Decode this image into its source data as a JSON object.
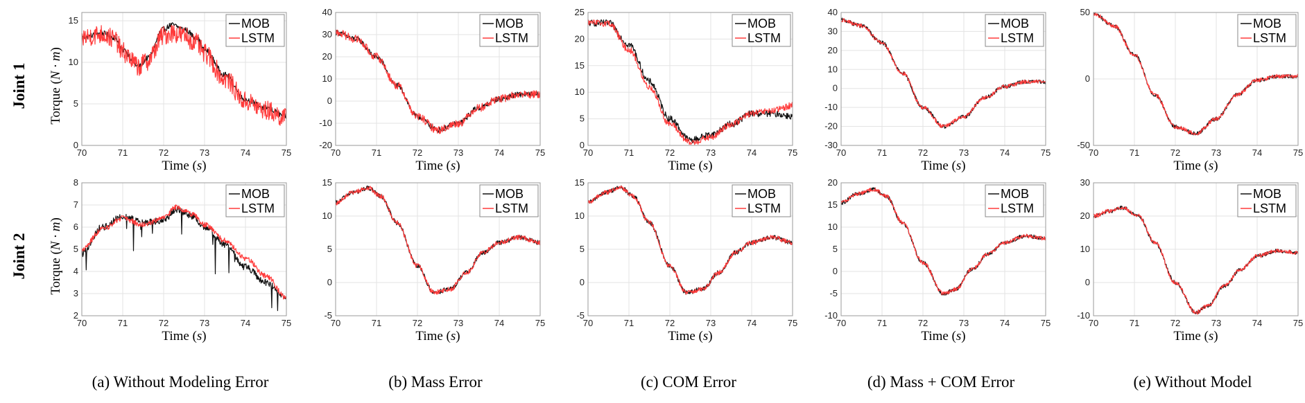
{
  "figure": {
    "row_labels": [
      "Joint 1",
      "Joint 2"
    ],
    "captions": [
      "(a) Without Modeling Error",
      "(b) Mass Error",
      "(c) COM Error",
      "(d) Mass + COM Error",
      "(e) Without Model"
    ],
    "xlabel_prefix": "Time (",
    "xlabel_var": "s",
    "xlabel_suffix": ")",
    "ylabel_prefix": "Torque (",
    "ylabel_var": "N · m",
    "ylabel_suffix": ")",
    "colors": {
      "MOB": "#111111",
      "LSTM": "#ff3b3b",
      "grid": "#e3e3e3",
      "frame": "#9a9a9a"
    }
  },
  "chart_data": [
    {
      "type": "line",
      "row": 0,
      "col": 0,
      "xlim": [
        70,
        75
      ],
      "ylim": [
        0,
        16
      ],
      "yticks": [
        0,
        5,
        10,
        15
      ],
      "xticks": [
        70,
        71,
        72,
        73,
        74,
        75
      ],
      "x": [
        70,
        70.5,
        70.8,
        71,
        71.4,
        71.6,
        72,
        72.2,
        72.5,
        72.8,
        73,
        73.5,
        74,
        74.5,
        75
      ],
      "series": [
        {
          "name": "MOB",
          "values": [
            13,
            13.5,
            13,
            11.5,
            9.5,
            10.5,
            14,
            14.5,
            14,
            13,
            11.5,
            8.5,
            5.5,
            4.5,
            3.5
          ]
        },
        {
          "name": "LSTM",
          "values": [
            13,
            13.4,
            12.8,
            11.2,
            9.5,
            10.2,
            13.2,
            13.6,
            13.2,
            12.3,
            11,
            8,
            5.3,
            4.2,
            3.3
          ]
        }
      ],
      "noise": [
        0.4,
        1.5
      ]
    },
    {
      "type": "line",
      "row": 0,
      "col": 1,
      "xlim": [
        70,
        75
      ],
      "ylim": [
        -20,
        40
      ],
      "yticks": [
        -20,
        -10,
        0,
        10,
        20,
        30,
        40
      ],
      "xticks": [
        70,
        71,
        72,
        73,
        74,
        75
      ],
      "x": [
        70,
        70.5,
        71,
        71.5,
        72,
        72.5,
        73,
        73.5,
        74,
        74.5,
        75
      ],
      "series": [
        {
          "name": "MOB",
          "values": [
            31,
            28,
            20,
            7,
            -7,
            -13,
            -10,
            -3,
            1,
            3,
            3
          ]
        },
        {
          "name": "LSTM",
          "values": [
            31,
            28,
            20,
            7,
            -7,
            -13,
            -10,
            -3,
            1,
            3,
            3
          ]
        }
      ],
      "noise": [
        0.4,
        0.6
      ]
    },
    {
      "type": "line",
      "row": 0,
      "col": 2,
      "xlim": [
        70,
        75
      ],
      "ylim": [
        0,
        25
      ],
      "yticks": [
        0,
        5,
        10,
        15,
        20,
        25
      ],
      "xticks": [
        70,
        71,
        72,
        73,
        74,
        75
      ],
      "x": [
        70,
        70.5,
        71,
        71.5,
        72,
        72.5,
        73,
        73.5,
        74,
        74.5,
        75
      ],
      "series": [
        {
          "name": "MOB",
          "values": [
            23,
            23,
            19,
            12,
            5,
            1,
            2,
            4,
            6,
            6,
            5.5
          ]
        },
        {
          "name": "LSTM",
          "values": [
            23,
            23,
            18,
            11,
            4,
            0.5,
            1.5,
            4,
            6,
            6.5,
            7.5
          ]
        }
      ],
      "noise": [
        0.5,
        0.5
      ]
    },
    {
      "type": "line",
      "row": 0,
      "col": 3,
      "xlim": [
        70,
        75
      ],
      "ylim": [
        -30,
        40
      ],
      "yticks": [
        -30,
        -20,
        -10,
        0,
        10,
        20,
        30,
        40
      ],
      "xticks": [
        70,
        71,
        72,
        73,
        74,
        75
      ],
      "x": [
        70,
        70.5,
        71,
        71.5,
        72,
        72.5,
        73,
        73.5,
        74,
        74.5,
        75
      ],
      "series": [
        {
          "name": "MOB",
          "values": [
            36,
            33,
            24,
            8,
            -10,
            -20,
            -15,
            -5,
            1,
            3.5,
            3.5
          ]
        },
        {
          "name": "LSTM",
          "values": [
            36,
            33,
            24,
            8,
            -10,
            -20,
            -15,
            -5,
            1,
            3.5,
            3.5
          ]
        }
      ],
      "noise": [
        0.3,
        0.3
      ]
    },
    {
      "type": "line",
      "row": 0,
      "col": 4,
      "xlim": [
        70,
        75
      ],
      "ylim": [
        -50,
        50
      ],
      "yticks": [
        -50,
        0,
        50
      ],
      "xticks": [
        70,
        71,
        72,
        73,
        74,
        75
      ],
      "x": [
        70,
        70.5,
        71,
        71.5,
        72,
        72.5,
        73,
        73.5,
        74,
        74.5,
        75
      ],
      "series": [
        {
          "name": "MOB",
          "values": [
            49,
            40,
            18,
            -12,
            -36,
            -41,
            -30,
            -12,
            -1,
            2,
            2
          ]
        },
        {
          "name": "LSTM",
          "values": [
            49,
            40,
            18,
            -12,
            -36,
            -41,
            -30,
            -12,
            -1,
            2,
            2
          ]
        }
      ],
      "noise": [
        0.3,
        0.3
      ]
    },
    {
      "type": "line",
      "row": 1,
      "col": 0,
      "xlim": [
        70,
        75
      ],
      "ylim": [
        2,
        8
      ],
      "yticks": [
        2,
        3,
        4,
        5,
        6,
        7,
        8
      ],
      "xticks": [
        70,
        71,
        72,
        73,
        74,
        75
      ],
      "x": [
        70,
        70.5,
        71,
        71.5,
        72,
        72.3,
        72.7,
        73,
        73.5,
        74,
        74.5,
        75
      ],
      "series": [
        {
          "name": "MOB",
          "values": [
            4.8,
            6,
            6.5,
            6.2,
            6.3,
            6.8,
            6.5,
            6,
            5.2,
            4.2,
            3.5,
            2.8
          ]
        },
        {
          "name": "LSTM",
          "values": [
            5,
            5.9,
            6.4,
            6.1,
            6.4,
            6.9,
            6.6,
            6.1,
            5.4,
            4.6,
            3.8,
            2.8
          ]
        }
      ],
      "noise": [
        0.5,
        0.4
      ]
    },
    {
      "type": "line",
      "row": 1,
      "col": 1,
      "xlim": [
        70,
        75
      ],
      "ylim": [
        -5,
        15
      ],
      "yticks": [
        -5,
        0,
        5,
        10,
        15
      ],
      "xticks": [
        70,
        71,
        72,
        73,
        74,
        75
      ],
      "x": [
        70,
        70.4,
        70.8,
        71.1,
        71.5,
        72,
        72.4,
        72.8,
        73.2,
        73.6,
        74,
        74.5,
        75
      ],
      "series": [
        {
          "name": "MOB",
          "values": [
            12,
            13.5,
            14.2,
            13,
            9,
            2.5,
            -1.5,
            -1,
            1.5,
            4.5,
            6,
            6.8,
            6
          ]
        },
        {
          "name": "LSTM",
          "values": [
            12,
            13.5,
            14.2,
            13,
            9,
            2.5,
            -1.5,
            -1,
            1.5,
            4.5,
            6,
            6.8,
            6
          ]
        }
      ],
      "noise": [
        0.35,
        0.35
      ]
    },
    {
      "type": "line",
      "row": 1,
      "col": 2,
      "xlim": [
        70,
        75
      ],
      "ylim": [
        -5,
        15
      ],
      "yticks": [
        -5,
        0,
        5,
        10,
        15
      ],
      "xticks": [
        70,
        71,
        72,
        73,
        74,
        75
      ],
      "x": [
        70,
        70.4,
        70.8,
        71.1,
        71.5,
        72,
        72.4,
        72.8,
        73.2,
        73.6,
        74,
        74.5,
        75
      ],
      "series": [
        {
          "name": "MOB",
          "values": [
            12,
            13.5,
            14.3,
            13,
            9,
            2.5,
            -1.5,
            -1,
            1.5,
            4.5,
            6,
            6.8,
            6
          ]
        },
        {
          "name": "LSTM",
          "values": [
            12,
            13.5,
            14.3,
            13,
            9,
            2.5,
            -1.5,
            -1,
            1.5,
            4.5,
            6,
            6.8,
            6
          ]
        }
      ],
      "noise": [
        0.35,
        0.35
      ]
    },
    {
      "type": "line",
      "row": 1,
      "col": 3,
      "xlim": [
        70,
        75
      ],
      "ylim": [
        -10,
        20
      ],
      "yticks": [
        -10,
        -5,
        0,
        5,
        10,
        15,
        20
      ],
      "xticks": [
        70,
        71,
        72,
        73,
        74,
        75
      ],
      "x": [
        70,
        70.4,
        70.8,
        71.1,
        71.5,
        72,
        72.5,
        72.8,
        73.2,
        73.6,
        74,
        74.5,
        75
      ],
      "series": [
        {
          "name": "MOB",
          "values": [
            15.5,
            17.5,
            18.5,
            17,
            11,
            2,
            -5,
            -4,
            0.5,
            4,
            6.5,
            8,
            7.5
          ]
        },
        {
          "name": "LSTM",
          "values": [
            15.5,
            17.5,
            18.5,
            17,
            11,
            2,
            -5,
            -4,
            0.5,
            4,
            6.5,
            8,
            7.5
          ]
        }
      ],
      "noise": [
        0.3,
        0.3
      ]
    },
    {
      "type": "line",
      "row": 1,
      "col": 4,
      "xlim": [
        70,
        75
      ],
      "ylim": [
        -10,
        30
      ],
      "yticks": [
        -10,
        0,
        10,
        20,
        30
      ],
      "xticks": [
        70,
        71,
        72,
        73,
        74,
        75
      ],
      "x": [
        70,
        70.4,
        70.7,
        71.1,
        71.5,
        72,
        72.5,
        72.8,
        73.2,
        73.6,
        74,
        74.5,
        75
      ],
      "series": [
        {
          "name": "MOB",
          "values": [
            20,
            21.5,
            22.5,
            20,
            12,
            0,
            -9,
            -7,
            -1,
            4,
            8,
            9.5,
            9
          ]
        },
        {
          "name": "LSTM",
          "values": [
            20,
            21.5,
            22.5,
            20,
            12,
            0,
            -9,
            -7,
            -1,
            4,
            8,
            9.5,
            9
          ]
        }
      ],
      "noise": [
        0.3,
        0.3
      ]
    }
  ]
}
